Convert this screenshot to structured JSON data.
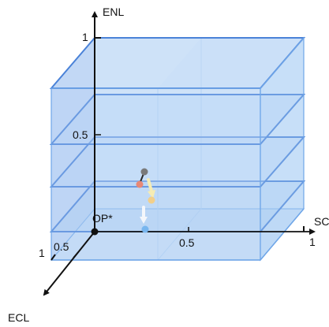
{
  "axes": {
    "vertical": {
      "label": "ENL",
      "top_tick": "1",
      "mid_tick": "0.5"
    },
    "horizontal": {
      "label": "SC",
      "end_tick": "1",
      "mid_tick": "0.5"
    },
    "depth": {
      "label": "ECL",
      "near_tick": "1",
      "mid_tick": "0.5"
    },
    "origin_label": "OP*"
  },
  "colors": {
    "box_fill": "#9fc5f0",
    "box_edge": "#6fa6e8",
    "plane_fill": "#b8d3f6",
    "plane_edge": "#4a82d8",
    "axis": "#111111",
    "point_gray": "#7a7a7a",
    "point_salmon": "#e88876",
    "point_yellow": "#f2cf8a",
    "point_blue": "#78b6ef",
    "arrow_yellow": "#f6ecb3",
    "arrow_white": "#f5f7fb"
  }
}
